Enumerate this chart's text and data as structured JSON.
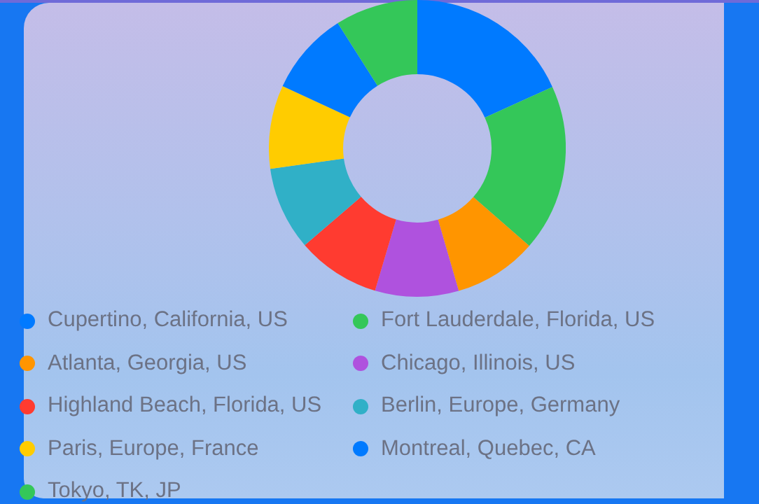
{
  "chart_data": {
    "type": "donut",
    "categories": [
      "Cupertino, California, US",
      "Fort Lauderdale, Florida, US",
      "Atlanta, Georgia, US",
      "Chicago, Illinois, US",
      "Highland Beach, Florida, US",
      "Berlin, Europe, Germany",
      "Paris, Europe, France",
      "Montreal, Quebec, CA",
      "Tokyo, TK, JP"
    ],
    "values": [
      18.2,
      18.2,
      9.1,
      9.1,
      9.1,
      9.1,
      9.1,
      9.1,
      9.0
    ],
    "colors": [
      "#007aff",
      "#34c759",
      "#ff9500",
      "#af52de",
      "#ff3b30",
      "#30b0c7",
      "#ffcc00",
      "#007aff",
      "#34c759"
    ],
    "legend": "bottom"
  }
}
